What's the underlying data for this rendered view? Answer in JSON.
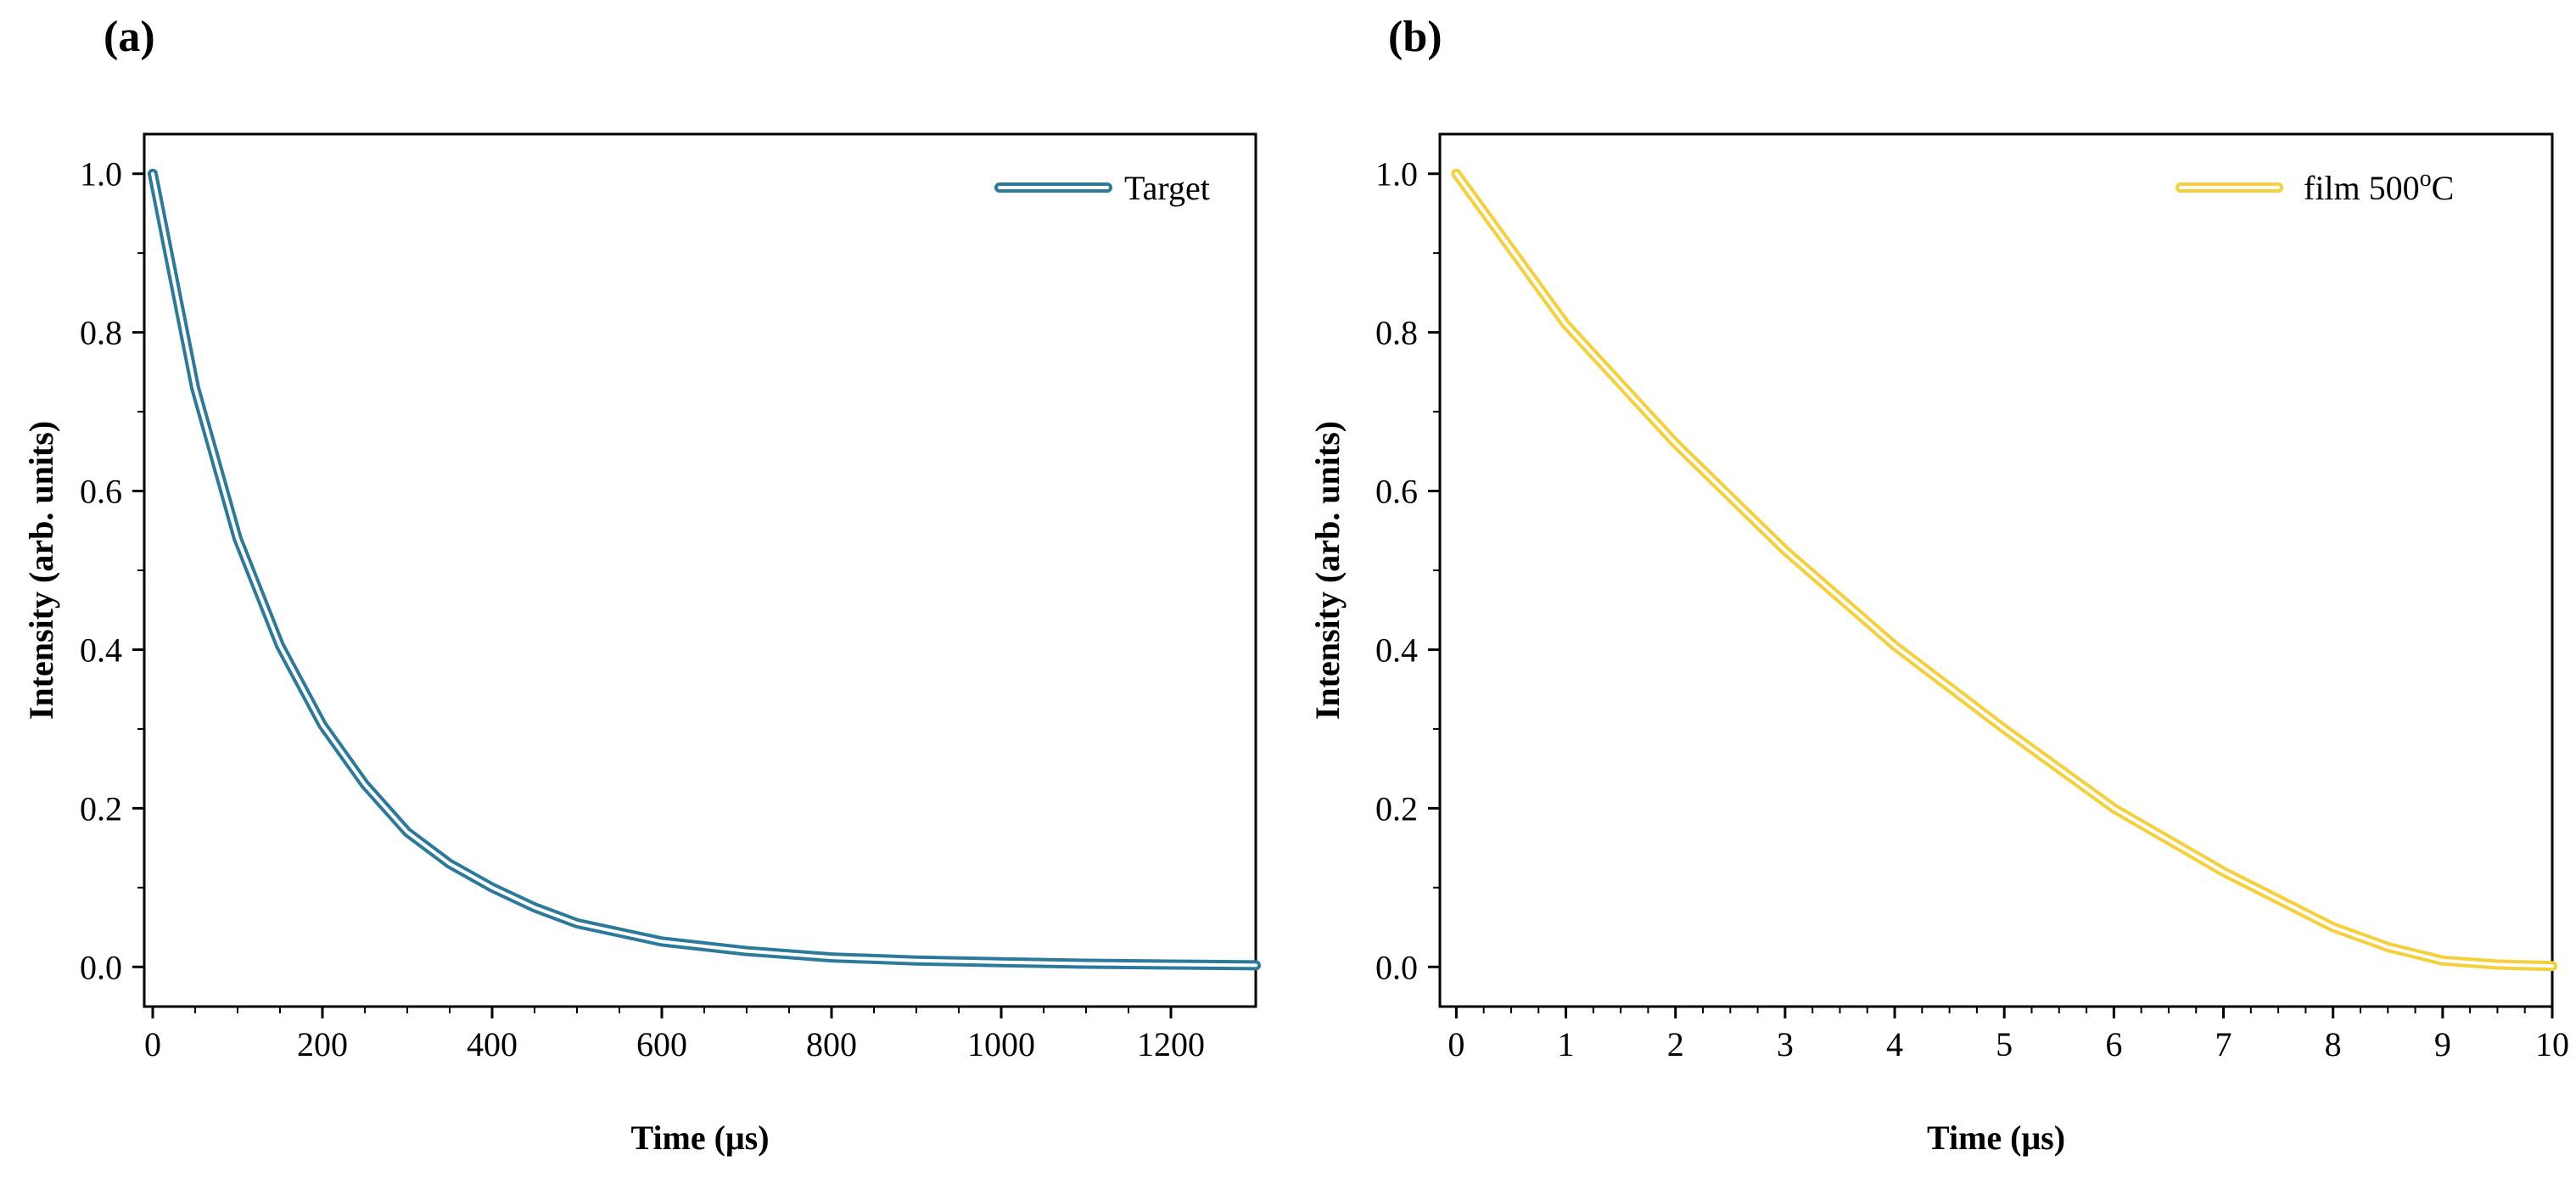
{
  "chart_data": [
    {
      "type": "line",
      "panel": "(a)",
      "xlabel": "Time (μs)",
      "ylabel": "Intensity (arb. units)",
      "xlim": [
        -10,
        1300
      ],
      "ylim": [
        -0.05,
        1.05
      ],
      "xticks": [
        0,
        200,
        400,
        600,
        800,
        1000,
        1200
      ],
      "xtick_labels": [
        "0",
        "200",
        "400",
        "600",
        "800",
        "1000",
        "1200"
      ],
      "yticks": [
        0.0,
        0.2,
        0.4,
        0.6,
        0.8,
        1.0
      ],
      "ytick_labels": [
        "0.0",
        "0.2",
        "0.4",
        "0.6",
        "0.8",
        "1.0"
      ],
      "legend_position": "top-right",
      "series": [
        {
          "name": "Target",
          "color": "#2b7a9c",
          "style": "double-outline",
          "x": [
            0,
            50,
            100,
            150,
            200,
            250,
            300,
            350,
            400,
            450,
            500,
            600,
            700,
            800,
            900,
            1000,
            1100,
            1200,
            1300
          ],
          "y": [
            1.0,
            0.73,
            0.54,
            0.405,
            0.305,
            0.23,
            0.17,
            0.13,
            0.1,
            0.075,
            0.055,
            0.032,
            0.02,
            0.012,
            0.008,
            0.006,
            0.004,
            0.003,
            0.002
          ]
        }
      ]
    },
    {
      "type": "line",
      "panel": "(b)",
      "xlabel": "Time (μs)",
      "ylabel": "Intensity (arb. units)",
      "xlim": [
        -0.15,
        10
      ],
      "ylim": [
        -0.05,
        1.05
      ],
      "xticks": [
        0,
        1,
        2,
        3,
        4,
        5,
        6,
        7,
        8,
        9,
        10
      ],
      "xtick_labels": [
        "0",
        "1",
        "2",
        "3",
        "4",
        "5",
        "6",
        "7",
        "8",
        "9",
        "10"
      ],
      "yticks": [
        0.0,
        0.2,
        0.4,
        0.6,
        0.8,
        1.0
      ],
      "ytick_labels": [
        "0.0",
        "0.2",
        "0.4",
        "0.6",
        "0.8",
        "1.0"
      ],
      "legend_position": "top-right",
      "series": [
        {
          "name": "film 500",
          "name_superscript": "o",
          "name_suffix": "C",
          "color": "#f5d03a",
          "style": "double-outline",
          "x": [
            0,
            1,
            2,
            3,
            4,
            5,
            6,
            7,
            8,
            8.5,
            9,
            9.5,
            10
          ],
          "y": [
            1.0,
            0.81,
            0.66,
            0.525,
            0.405,
            0.3,
            0.2,
            0.12,
            0.05,
            0.025,
            0.008,
            0.003,
            0.001
          ]
        }
      ]
    }
  ]
}
